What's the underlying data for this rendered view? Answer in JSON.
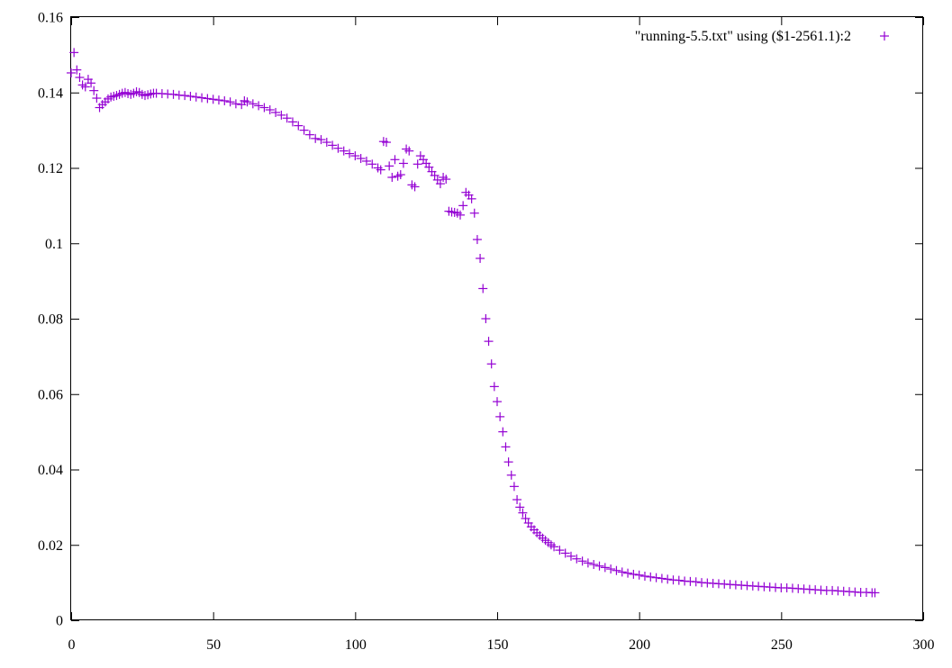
{
  "chart_data": {
    "type": "scatter",
    "title": "",
    "xlabel": "",
    "ylabel": "",
    "xlim": [
      0,
      300
    ],
    "ylim": [
      0,
      0.16
    ],
    "grid": false,
    "legend_position": "top-right",
    "x_ticks": [
      0,
      50,
      100,
      150,
      200,
      250,
      300
    ],
    "y_ticks": [
      0,
      0.02,
      0.04,
      0.06,
      0.08,
      0.1,
      0.12,
      0.14,
      0.16
    ],
    "x_tick_labels": [
      "0",
      "50",
      "100",
      "150",
      "200",
      "250",
      "300"
    ],
    "y_tick_labels": [
      "0",
      "0.02",
      "0.04",
      "0.06",
      "0.08",
      "0.1",
      "0.12",
      "0.14",
      "0.16"
    ],
    "series": [
      {
        "name": "\"running-5.5.txt\" using ($1-2561.1):2",
        "color": "#9400d3",
        "marker": "plus",
        "points": [
          [
            0,
            0.1452
          ],
          [
            1,
            0.1506
          ],
          [
            2,
            0.146
          ],
          [
            3,
            0.144
          ],
          [
            4,
            0.142
          ],
          [
            5,
            0.1415
          ],
          [
            6,
            0.1435
          ],
          [
            7,
            0.1425
          ],
          [
            8,
            0.1405
          ],
          [
            9,
            0.1385
          ],
          [
            10,
            0.136
          ],
          [
            11,
            0.1368
          ],
          [
            12,
            0.1375
          ],
          [
            13,
            0.1383
          ],
          [
            14,
            0.1388
          ],
          [
            15,
            0.139
          ],
          [
            16,
            0.1392
          ],
          [
            17,
            0.1395
          ],
          [
            18,
            0.1398
          ],
          [
            19,
            0.14
          ],
          [
            20,
            0.1397
          ],
          [
            21,
            0.1395
          ],
          [
            22,
            0.1398
          ],
          [
            23,
            0.1402
          ],
          [
            24,
            0.14
          ],
          [
            25,
            0.1395
          ],
          [
            26,
            0.1392
          ],
          [
            27,
            0.1394
          ],
          [
            28,
            0.1396
          ],
          [
            29,
            0.1398
          ],
          [
            30,
            0.1398
          ],
          [
            32,
            0.1397
          ],
          [
            34,
            0.1396
          ],
          [
            36,
            0.1395
          ],
          [
            38,
            0.1393
          ],
          [
            40,
            0.1392
          ],
          [
            42,
            0.139
          ],
          [
            44,
            0.1388
          ],
          [
            46,
            0.1386
          ],
          [
            48,
            0.1384
          ],
          [
            50,
            0.1382
          ],
          [
            52,
            0.138
          ],
          [
            54,
            0.1378
          ],
          [
            56,
            0.1375
          ],
          [
            58,
            0.137
          ],
          [
            60,
            0.1368
          ],
          [
            61,
            0.1378
          ],
          [
            62,
            0.1375
          ],
          [
            64,
            0.137
          ],
          [
            66,
            0.1365
          ],
          [
            68,
            0.136
          ],
          [
            70,
            0.1354
          ],
          [
            72,
            0.1347
          ],
          [
            74,
            0.134
          ],
          [
            76,
            0.1332
          ],
          [
            78,
            0.1322
          ],
          [
            80,
            0.1312
          ],
          [
            82,
            0.13
          ],
          [
            84,
            0.1288
          ],
          [
            86,
            0.1278
          ],
          [
            88,
            0.1275
          ],
          [
            90,
            0.1268
          ],
          [
            92,
            0.126
          ],
          [
            94,
            0.1252
          ],
          [
            96,
            0.1245
          ],
          [
            98,
            0.1238
          ],
          [
            100,
            0.1232
          ],
          [
            102,
            0.1225
          ],
          [
            104,
            0.1218
          ],
          [
            106,
            0.121
          ],
          [
            108,
            0.12
          ],
          [
            109,
            0.1195
          ],
          [
            110,
            0.127
          ],
          [
            111,
            0.1268
          ],
          [
            112,
            0.1205
          ],
          [
            113,
            0.1175
          ],
          [
            114,
            0.1222
          ],
          [
            115,
            0.1178
          ],
          [
            116,
            0.1182
          ],
          [
            117,
            0.1212
          ],
          [
            118,
            0.125
          ],
          [
            119,
            0.1245
          ],
          [
            120,
            0.1155
          ],
          [
            121,
            0.115
          ],
          [
            122,
            0.121
          ],
          [
            123,
            0.1232
          ],
          [
            124,
            0.1222
          ],
          [
            125,
            0.1212
          ],
          [
            126,
            0.1202
          ],
          [
            127,
            0.119
          ],
          [
            128,
            0.118
          ],
          [
            129,
            0.1168
          ],
          [
            130,
            0.1158
          ],
          [
            131,
            0.1175
          ],
          [
            132,
            0.117
          ],
          [
            133,
            0.1085
          ],
          [
            134,
            0.1083
          ],
          [
            135,
            0.1082
          ],
          [
            136,
            0.108
          ],
          [
            137,
            0.1075
          ],
          [
            138,
            0.11
          ],
          [
            139,
            0.1135
          ],
          [
            140,
            0.1128
          ],
          [
            141,
            0.1118
          ],
          [
            142,
            0.108
          ],
          [
            143,
            0.101
          ],
          [
            144,
            0.096
          ],
          [
            145,
            0.088
          ],
          [
            146,
            0.08
          ],
          [
            147,
            0.074
          ],
          [
            148,
            0.068
          ],
          [
            149,
            0.062
          ],
          [
            150,
            0.058
          ],
          [
            151,
            0.054
          ],
          [
            152,
            0.05
          ],
          [
            153,
            0.046
          ],
          [
            154,
            0.042
          ],
          [
            155,
            0.0385
          ],
          [
            156,
            0.0355
          ],
          [
            157,
            0.032
          ],
          [
            158,
            0.03
          ],
          [
            159,
            0.0285
          ],
          [
            160,
            0.027
          ],
          [
            161,
            0.0258
          ],
          [
            162,
            0.0248
          ],
          [
            163,
            0.024
          ],
          [
            164,
            0.0232
          ],
          [
            165,
            0.0225
          ],
          [
            166,
            0.0218
          ],
          [
            167,
            0.0212
          ],
          [
            168,
            0.0206
          ],
          [
            169,
            0.02
          ],
          [
            170,
            0.0195
          ],
          [
            172,
            0.0186
          ],
          [
            174,
            0.0178
          ],
          [
            176,
            0.017
          ],
          [
            178,
            0.0163
          ],
          [
            180,
            0.0157
          ],
          [
            182,
            0.0152
          ],
          [
            184,
            0.0148
          ],
          [
            186,
            0.0144
          ],
          [
            188,
            0.014
          ],
          [
            190,
            0.0136
          ],
          [
            192,
            0.0132
          ],
          [
            194,
            0.0128
          ],
          [
            196,
            0.0125
          ],
          [
            198,
            0.0122
          ],
          [
            200,
            0.012
          ],
          [
            202,
            0.0117
          ],
          [
            204,
            0.0115
          ],
          [
            206,
            0.0113
          ],
          [
            208,
            0.0111
          ],
          [
            210,
            0.0109
          ],
          [
            212,
            0.0107
          ],
          [
            214,
            0.0106
          ],
          [
            216,
            0.0104
          ],
          [
            218,
            0.0103
          ],
          [
            220,
            0.0102
          ],
          [
            222,
            0.01
          ],
          [
            224,
            0.0099
          ],
          [
            226,
            0.0098
          ],
          [
            228,
            0.0097
          ],
          [
            230,
            0.0096
          ],
          [
            232,
            0.0095
          ],
          [
            234,
            0.0094
          ],
          [
            236,
            0.0093
          ],
          [
            238,
            0.0092
          ],
          [
            240,
            0.0091
          ],
          [
            242,
            0.009
          ],
          [
            244,
            0.0089
          ],
          [
            246,
            0.0088
          ],
          [
            248,
            0.0087
          ],
          [
            250,
            0.0086
          ],
          [
            252,
            0.0086
          ],
          [
            254,
            0.0085
          ],
          [
            256,
            0.0084
          ],
          [
            258,
            0.0083
          ],
          [
            260,
            0.0082
          ],
          [
            262,
            0.0081
          ],
          [
            264,
            0.008
          ],
          [
            266,
            0.0079
          ],
          [
            268,
            0.0079
          ],
          [
            270,
            0.0078
          ],
          [
            272,
            0.0077
          ],
          [
            274,
            0.0076
          ],
          [
            276,
            0.0075
          ],
          [
            278,
            0.0074
          ],
          [
            280,
            0.0074
          ],
          [
            282,
            0.0073
          ],
          [
            283,
            0.0073
          ]
        ]
      }
    ]
  }
}
